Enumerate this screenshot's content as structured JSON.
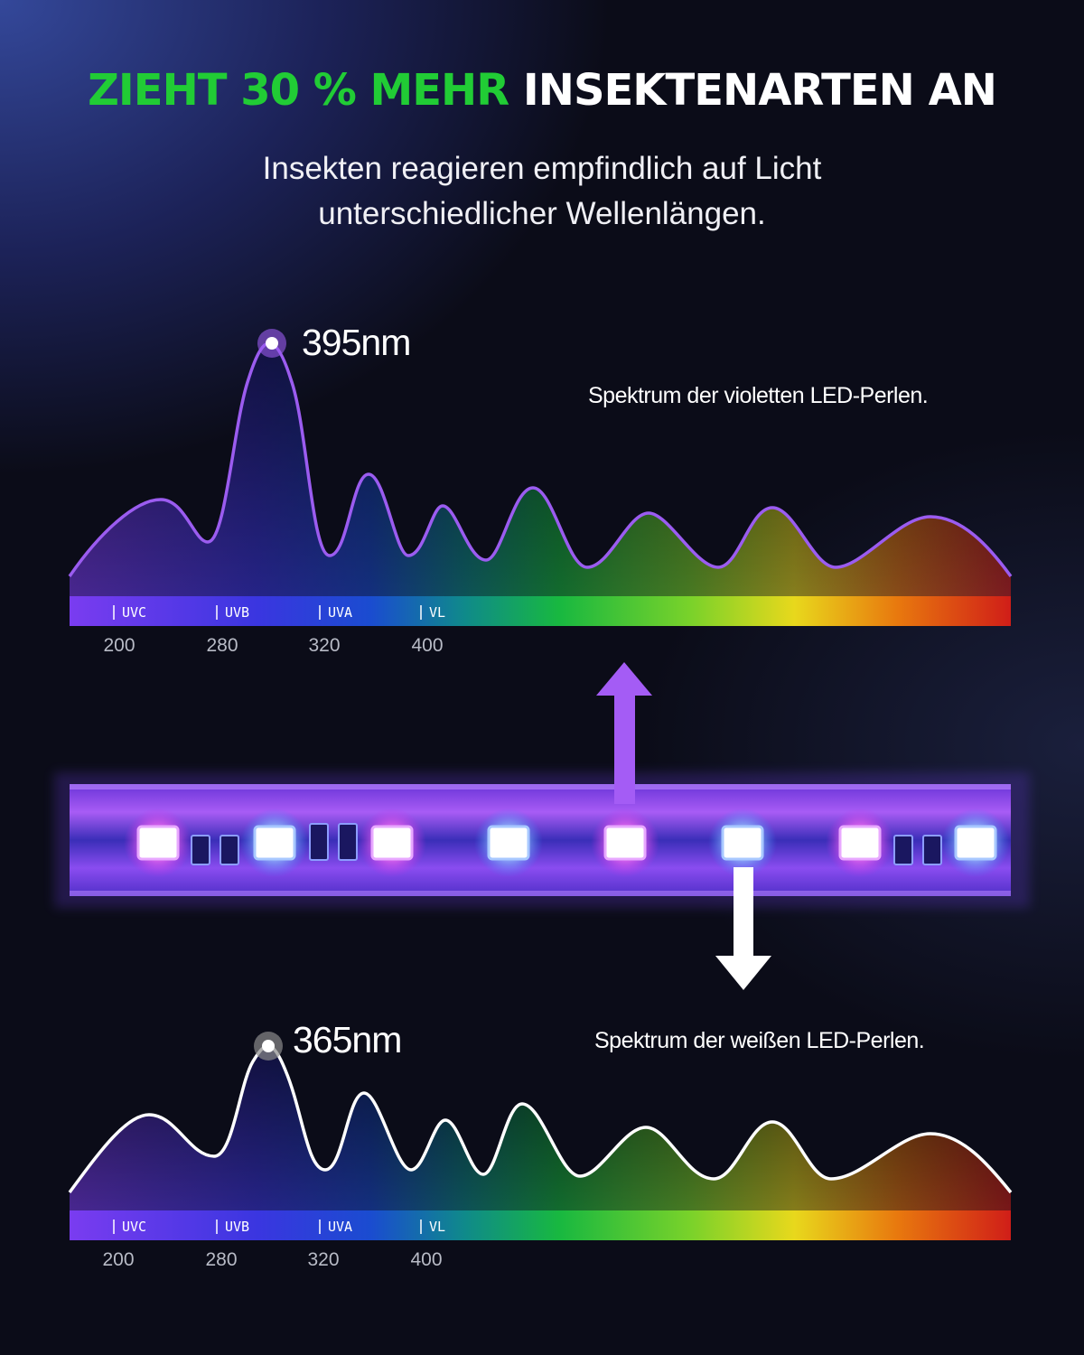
{
  "headline": {
    "accent": "ZIEHT 30 % MEHR",
    "rest": "INSEKTENARTEN AN",
    "accent_color": "#21cc35"
  },
  "subtitle": {
    "line1": "Insekten reagieren empfindlich auf Licht",
    "line2": "unterschiedlicher Wellenlängen."
  },
  "violet_spectrum": {
    "peak_label": "395nm",
    "caption": "Spektrum der violetten LED-Perlen.",
    "curve_color": "#9b5cf0",
    "marker_color": "#9b5cf0",
    "band_labels": [
      "UVC",
      "UVB",
      "UVA",
      "VL"
    ],
    "tick_labels": [
      "200",
      "280",
      "320",
      "400"
    ]
  },
  "white_spectrum": {
    "peak_label": "365nm",
    "caption": "Spektrum der weißen LED-Perlen.",
    "curve_color": "#ffffff",
    "marker_color": "#8a8a8a",
    "band_labels": [
      "UVC",
      "UVB",
      "UVA",
      "VL"
    ],
    "tick_labels": [
      "200",
      "280",
      "320",
      "400"
    ]
  },
  "led_strip": {
    "beads": [
      "violet",
      "white",
      "violet",
      "white",
      "violet",
      "white",
      "violet",
      "white"
    ]
  },
  "arrows": {
    "up_color": "#a45cf5",
    "down_color": "#ffffff"
  }
}
